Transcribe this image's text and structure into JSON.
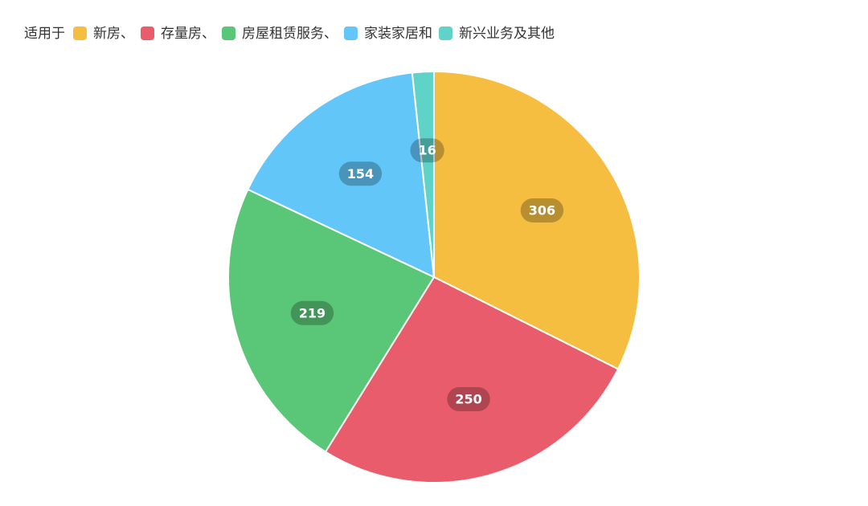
{
  "chart_data": {
    "type": "pie",
    "legend_title": "适用于",
    "categories": [
      "新房、",
      "存量房、",
      "房屋租赁服务、",
      "家装家居和",
      "新兴业务及其他"
    ],
    "values": [
      306,
      250,
      219,
      154,
      16
    ],
    "colors": [
      "#f5be41",
      "#e85c6c",
      "#5ac677",
      "#62c6f9",
      "#5fd3c8"
    ],
    "legend": "top-left"
  }
}
